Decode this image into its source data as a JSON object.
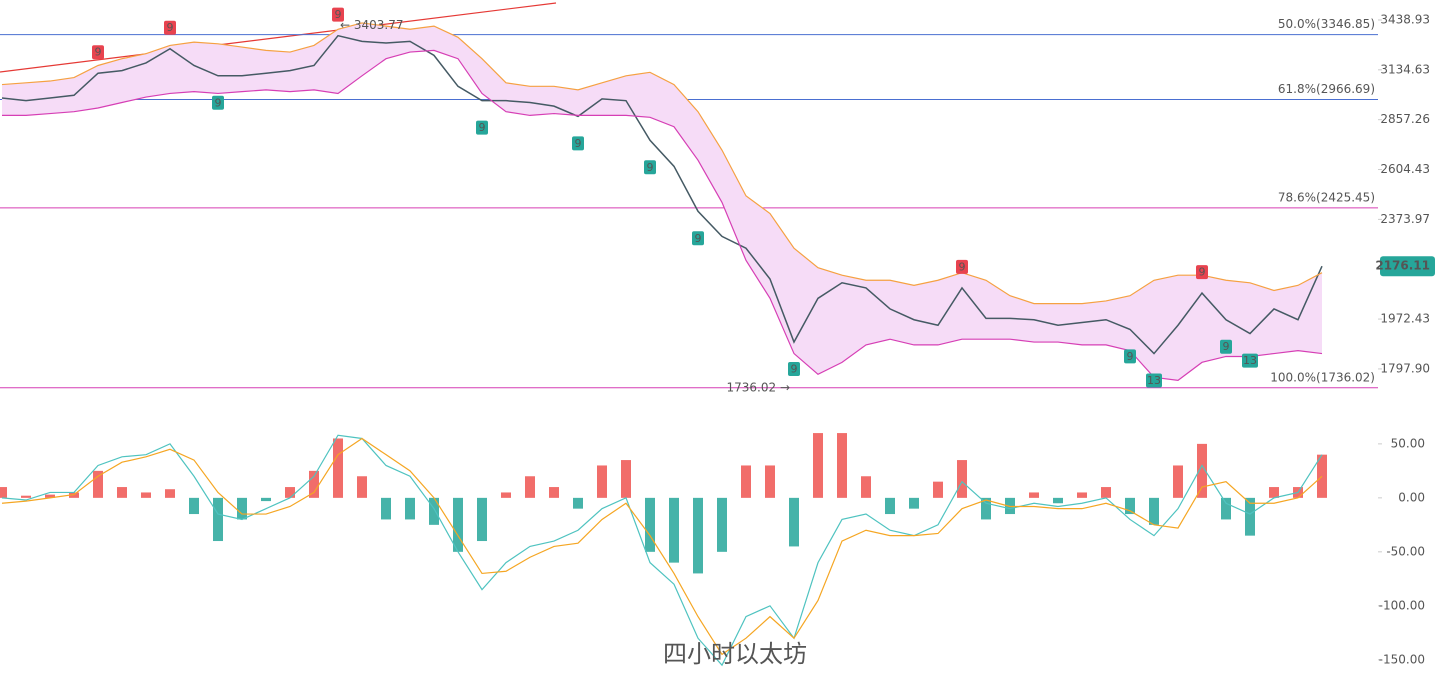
{
  "chart_data": [
    {
      "type": "line",
      "log_scale": true,
      "ylim": [
        1697,
        3569
      ],
      "yticks": [
        3438.93,
        3134.63,
        2857.26,
        2604.43,
        2373.97,
        1972.43,
        {
          "value": 1797.9,
          "label": "1797.90"
        }
      ],
      "series": [
        {
          "color": "#455a64",
          "values": [
            2975,
            2960,
            2975,
            2990,
            3115,
            3130,
            3175,
            3260,
            3160,
            3100,
            3100,
            3115,
            3130,
            3160,
            3340,
            3305,
            3295,
            3305,
            3220,
            3040,
            2960,
            2960,
            2950,
            2930,
            2875,
            2970,
            2960,
            2750,
            2620,
            2410,
            2300,
            2250,
            2125,
            1890,
            2050,
            2110,
            2090,
            2010,
            1970,
            1950,
            2090,
            1975,
            1975,
            1970,
            1950,
            1960,
            1970,
            1935,
            1850,
            1950,
            2070,
            1970,
            1920,
            2010,
            1970,
            2176.11
          ]
        },
        {
          "color": "#f5a142",
          "values": [
            3050,
            3060,
            3070,
            3090,
            3160,
            3200,
            3230,
            3280,
            3300,
            3290,
            3270,
            3250,
            3240,
            3280,
            3380,
            3420,
            3400,
            3380,
            3400,
            3330,
            3200,
            3060,
            3040,
            3040,
            3020,
            3060,
            3100,
            3120,
            3050,
            2900,
            2700,
            2480,
            2400,
            2250,
            2170,
            2140,
            2120,
            2120,
            2100,
            2120,
            2150,
            2120,
            2060,
            2030,
            2030,
            2030,
            2040,
            2060,
            2120,
            2140,
            2140,
            2120,
            2110,
            2080,
            2100,
            2150
          ]
        },
        {
          "color": "#d63fb5",
          "values": [
            2880,
            2880,
            2890,
            2900,
            2920,
            2950,
            2980,
            3000,
            3010,
            3000,
            3010,
            3020,
            3010,
            3020,
            3000,
            3100,
            3200,
            3240,
            3250,
            3200,
            3000,
            2900,
            2880,
            2890,
            2880,
            2880,
            2880,
            2870,
            2820,
            2650,
            2450,
            2200,
            2050,
            1850,
            1780,
            1820,
            1880,
            1900,
            1880,
            1880,
            1900,
            1900,
            1900,
            1890,
            1890,
            1880,
            1880,
            1860,
            1770,
            1760,
            1820,
            1840,
            1840,
            1850,
            1860,
            1850
          ]
        }
      ],
      "band_fill": "#f6dcf7",
      "current_price": {
        "value": 2176.11,
        "label": "2176.11",
        "color": "#26a69a"
      },
      "fib_levels": [
        {
          "label": "50.0%(3346.85)",
          "value": 3346.85,
          "color": "#4a6fd1"
        },
        {
          "label": "61.8%(2966.69)",
          "value": 2966.69,
          "color": "#4a6fd1"
        },
        {
          "label": "78.6%(2425.45)",
          "value": 2425.45,
          "color": "#d63fb5"
        },
        {
          "label": "100.0%(1736.02)",
          "value": 1736.02,
          "color": "#d63fb5"
        }
      ],
      "extremes": [
        {
          "label": "← 3403.77",
          "value": 3403.77,
          "index": 14,
          "side": "high"
        },
        {
          "label": "1736.02 →",
          "value": 1736.02,
          "index": 33,
          "side": "low"
        }
      ],
      "td_marks": [
        {
          "label": "9",
          "index": 4,
          "side": "up"
        },
        {
          "label": "9",
          "index": 7,
          "side": "up"
        },
        {
          "label": "9",
          "index": 14,
          "side": "up"
        },
        {
          "label": "9",
          "index": 40,
          "side": "up"
        },
        {
          "label": "9",
          "index": 50,
          "side": "up"
        },
        {
          "label": "9",
          "index": 9,
          "side": "down"
        },
        {
          "label": "9",
          "index": 20,
          "side": "down"
        },
        {
          "label": "9",
          "index": 24,
          "side": "down"
        },
        {
          "label": "9",
          "index": 27,
          "side": "down"
        },
        {
          "label": "9",
          "index": 29,
          "side": "down"
        },
        {
          "label": "9",
          "index": 33,
          "side": "down"
        },
        {
          "label": "9",
          "index": 47,
          "side": "down"
        },
        {
          "label": "13",
          "index": 48,
          "side": "down"
        },
        {
          "label": "9",
          "index": 51,
          "side": "down"
        },
        {
          "label": "13",
          "index": 52,
          "side": "down"
        }
      ]
    },
    {
      "type": "bar",
      "ylim": [
        -165,
        86
      ],
      "yticks": [
        {
          "value": 50,
          "label": "50.00"
        },
        {
          "value": 0,
          "label": "0.00"
        },
        {
          "value": -50,
          "label": "-50.00"
        },
        {
          "value": -100,
          "label": "-100.00"
        },
        {
          "value": -150,
          "label": "-150.00"
        }
      ],
      "series": [
        {
          "color": "#ef5350",
          "negative_color": "#26a69a",
          "values": [
            10,
            2,
            3,
            5,
            25,
            10,
            5,
            8,
            -15,
            -40,
            -20,
            -3,
            10,
            25,
            55,
            20,
            -20,
            -20,
            -25,
            -50,
            -40,
            5,
            20,
            10,
            -10,
            30,
            35,
            -50,
            -60,
            -70,
            -50,
            30,
            30,
            -45,
            60,
            60,
            20,
            -15,
            -10,
            15,
            35,
            -20,
            -15,
            5,
            -5,
            5,
            10,
            -15,
            -25,
            30,
            50,
            -20,
            -35,
            10,
            10,
            40
          ]
        },
        {
          "color": "#4fc3c0",
          "values": [
            0,
            -2,
            5,
            5,
            30,
            38,
            40,
            50,
            20,
            -15,
            -20,
            -10,
            0,
            20,
            58,
            55,
            30,
            20,
            -10,
            -50,
            -85,
            -60,
            -45,
            -40,
            -30,
            -10,
            0,
            -60,
            -80,
            -130,
            -155,
            -110,
            -100,
            -130,
            -60,
            -20,
            -15,
            -30,
            -35,
            -25,
            15,
            -5,
            -10,
            -5,
            -8,
            -5,
            0,
            -20,
            -35,
            -10,
            30,
            -5,
            -15,
            0,
            5,
            40
          ]
        },
        {
          "color": "#f5a623",
          "values": [
            -5,
            -3,
            0,
            3,
            20,
            33,
            38,
            45,
            35,
            5,
            -15,
            -15,
            -8,
            5,
            40,
            55,
            40,
            25,
            0,
            -35,
            -70,
            -68,
            -55,
            -45,
            -42,
            -20,
            -5,
            -35,
            -70,
            -110,
            -145,
            -130,
            -110,
            -130,
            -95,
            -40,
            -30,
            -35,
            -35,
            -33,
            -10,
            -2,
            -8,
            -8,
            -10,
            -10,
            -5,
            -12,
            -25,
            -28,
            10,
            15,
            -5,
            -5,
            0,
            20
          ]
        }
      ],
      "title": "四小时以太坊",
      "title_color": "#e53935"
    }
  ]
}
